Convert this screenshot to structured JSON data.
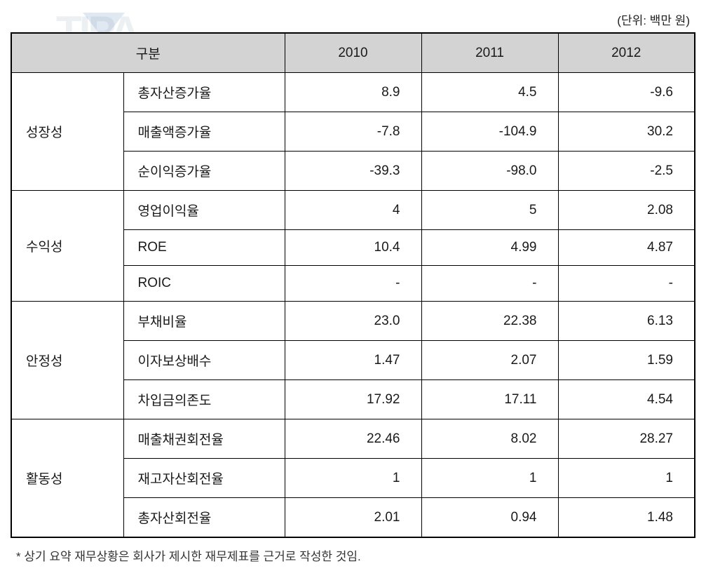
{
  "unit_label": "(단위: 백만 원)",
  "header": {
    "category_label": "구분",
    "years": [
      "2010",
      "2011",
      "2012"
    ]
  },
  "categories": [
    {
      "name": "성장성",
      "metrics": [
        {
          "label": "총자산증가율",
          "values": [
            "8.9",
            "4.5",
            "-9.6"
          ]
        },
        {
          "label": "매출액증가율",
          "values": [
            "-7.8",
            "-104.9",
            "30.2"
          ]
        },
        {
          "label": "순이익증가율",
          "values": [
            "-39.3",
            "-98.0",
            "-2.5"
          ]
        }
      ]
    },
    {
      "name": "수익성",
      "metrics": [
        {
          "label": "영업이익율",
          "values": [
            "4",
            "5",
            "2.08"
          ]
        },
        {
          "label": "ROE",
          "values": [
            "10.4",
            "4.99",
            "4.87"
          ]
        },
        {
          "label": "ROIC",
          "values": [
            "-",
            "-",
            "-"
          ]
        }
      ]
    },
    {
      "name": "안정성",
      "metrics": [
        {
          "label": "부채비율",
          "values": [
            "23.0",
            "22.38",
            "6.13"
          ]
        },
        {
          "label": "이자보상배수",
          "values": [
            "1.47",
            "2.07",
            "1.59"
          ]
        },
        {
          "label": "차입금의존도",
          "values": [
            "17.92",
            "17.11",
            "4.54"
          ]
        }
      ]
    },
    {
      "name": "활동성",
      "metrics": [
        {
          "label": "매출채권회전율",
          "values": [
            "22.46",
            "8.02",
            "28.27"
          ]
        },
        {
          "label": "재고자산회전율",
          "values": [
            "1",
            "1",
            "1"
          ]
        },
        {
          "label": "총자산회전율",
          "values": [
            "2.01",
            "0.94",
            "1.48"
          ]
        }
      ]
    }
  ],
  "footnote": "* 상기 요약 재무상황은 회사가 제시한 재무제표를 근거로 작성한 것임.",
  "watermark_text": "TIPA",
  "styling": {
    "header_bg": "#d3d3d3",
    "border_color": "#000000",
    "text_color": "#1a1a1a",
    "font_size_cell": 19,
    "font_size_unit": 17,
    "font_size_footnote": 17,
    "cell_padding": "14px 18px",
    "col_widths": {
      "category": 160,
      "metric": 230,
      "value": 195
    }
  }
}
